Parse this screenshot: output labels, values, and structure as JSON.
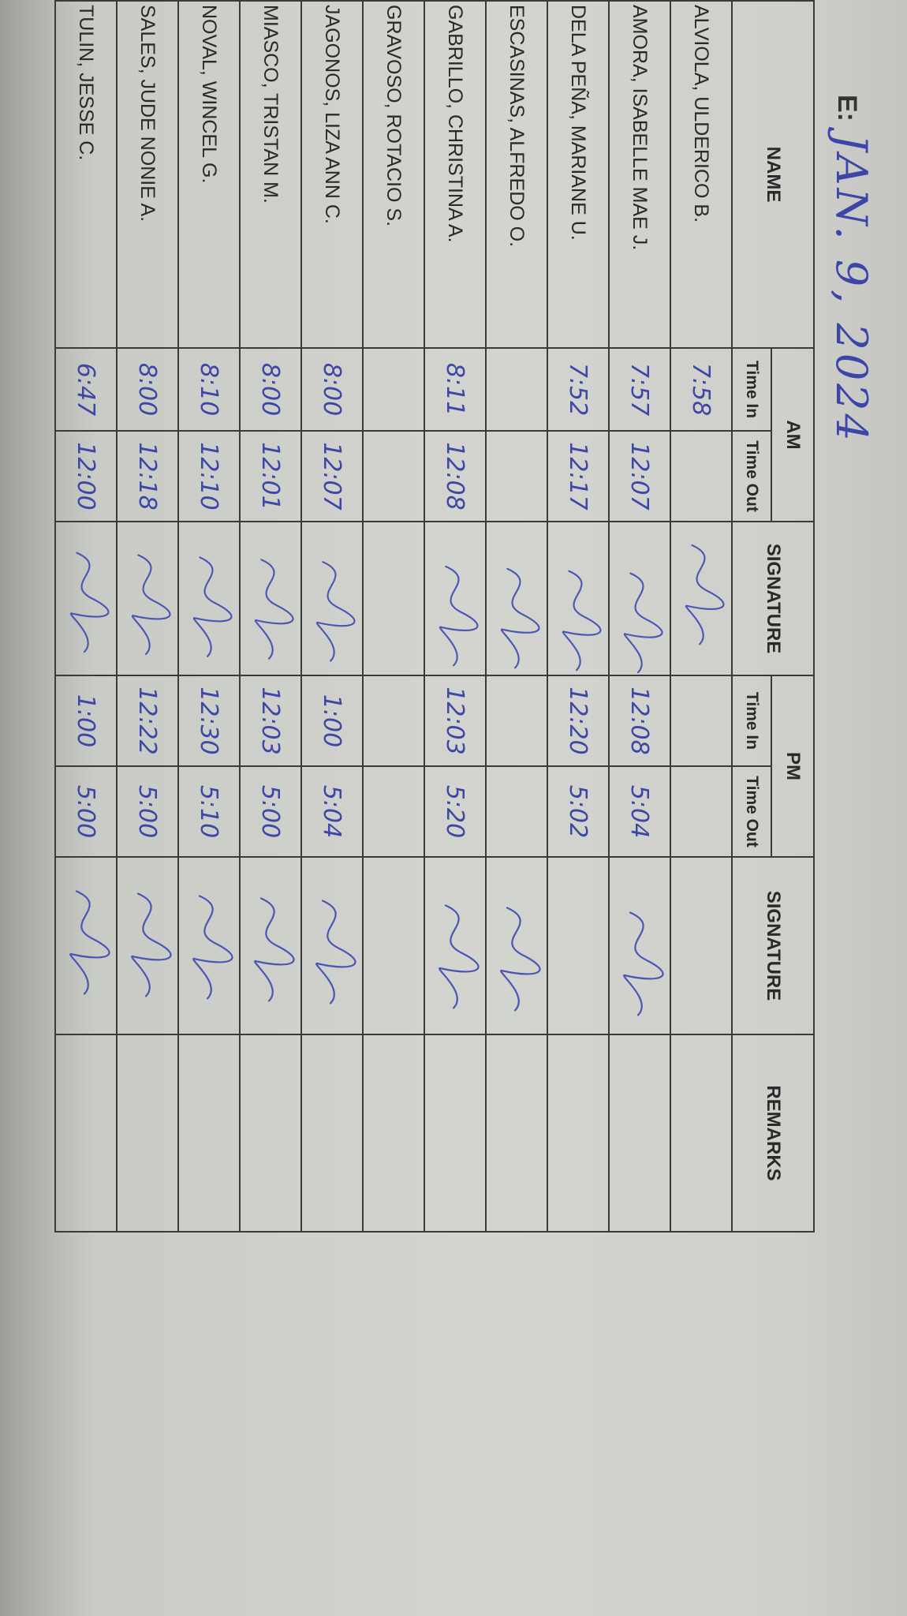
{
  "header": {
    "date_label": "E:",
    "date_value": "JAN. 9, 2024"
  },
  "columns": {
    "name": "NAME",
    "am": "AM",
    "pm": "PM",
    "time_in": "Time In",
    "time_out": "Time Out",
    "signature": "SIGNATURE",
    "remarks": "REMARKS"
  },
  "rows": [
    {
      "name": "ALVIOLA, ULDERICO B.",
      "am_in": "7:58",
      "am_out": "",
      "pm_in": "",
      "pm_out": "",
      "am_signed": true,
      "pm_signed": false
    },
    {
      "name": "AMORA, ISABELLE MAE J.",
      "am_in": "7:57",
      "am_out": "12:07",
      "pm_in": "12:08",
      "pm_out": "5:04",
      "am_signed": true,
      "pm_signed": true
    },
    {
      "name": "DELA PEÑA, MARIANE U.",
      "am_in": "7:52",
      "am_out": "12:17",
      "pm_in": "12:20",
      "pm_out": "5:02",
      "am_signed": true,
      "pm_signed": false
    },
    {
      "name": "ESCASINAS, ALFREDO O.",
      "am_in": "",
      "am_out": "",
      "pm_in": "",
      "pm_out": "",
      "am_signed": true,
      "pm_signed": true
    },
    {
      "name": "GABRILLO, CHRISTINA A.",
      "am_in": "8:11",
      "am_out": "12:08",
      "pm_in": "12:03",
      "pm_out": "5:20",
      "am_signed": true,
      "pm_signed": true
    },
    {
      "name": "GRAVOSO, ROTACIO S.",
      "am_in": "",
      "am_out": "",
      "pm_in": "",
      "pm_out": "",
      "am_signed": false,
      "pm_signed": false
    },
    {
      "name": "JAGONOS, LIZA ANN C.",
      "am_in": "8:00",
      "am_out": "12:07",
      "pm_in": "1:00",
      "pm_out": "5:04",
      "am_signed": true,
      "pm_signed": true
    },
    {
      "name": "MIASCO, TRISTAN M.",
      "am_in": "8:00",
      "am_out": "12:01",
      "pm_in": "12:03",
      "pm_out": "5:00",
      "am_signed": true,
      "pm_signed": true
    },
    {
      "name": "NOVAL, WINCEL G.",
      "am_in": "8:10",
      "am_out": "12:10",
      "pm_in": "12:30",
      "pm_out": "5:10",
      "am_signed": true,
      "pm_signed": true
    },
    {
      "name": "SALES, JUDE NONIE A.",
      "am_in": "8:00",
      "am_out": "12:18",
      "pm_in": "12:22",
      "pm_out": "5:00",
      "am_signed": true,
      "pm_signed": true
    },
    {
      "name": "TULIN, JESSE C.",
      "am_in": "6:47",
      "am_out": "12:00",
      "pm_in": "1:00",
      "pm_out": "5:00",
      "am_signed": true,
      "pm_signed": true
    }
  ],
  "ink_color": "#4a56b3"
}
